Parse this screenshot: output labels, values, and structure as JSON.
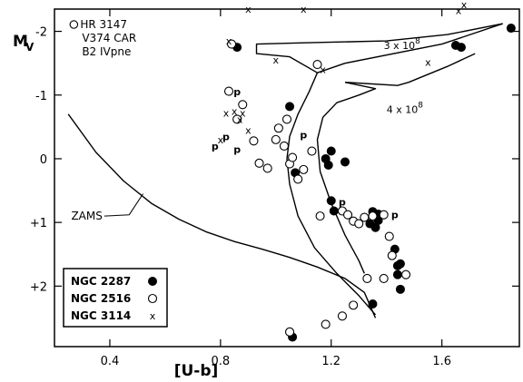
{
  "chart_data": {
    "type": "scatter",
    "xlabel": "[U-b]",
    "ylabel": "M",
    "ylabel_sub": "V",
    "xlim": [
      0.2,
      1.88
    ],
    "ylim": [
      -2.35,
      2.95
    ],
    "x_ticks": [
      0.4,
      0.8,
      1.2,
      1.6
    ],
    "x_tick_labels": [
      "0.4",
      "0.8",
      "1.2",
      "1.6"
    ],
    "y_ticks": [
      -2,
      -1,
      0,
      1,
      2
    ],
    "y_tick_labels": [
      "-2",
      "-1",
      "0",
      "+1",
      "+2"
    ],
    "star_note": {
      "lines": [
        "HR 3147",
        "V374 CAR",
        "B2 IVpne"
      ],
      "x": 0.27,
      "y": -2.05
    },
    "curves": [
      {
        "name": "ZAMS",
        "x": [
          0.25,
          0.35,
          0.45,
          0.55,
          0.65,
          0.75,
          0.85,
          0.95,
          1.05,
          1.15,
          1.25,
          1.32,
          1.36
        ],
        "y": [
          -0.7,
          -0.1,
          0.35,
          0.7,
          0.95,
          1.15,
          1.3,
          1.42,
          1.55,
          1.7,
          1.88,
          2.1,
          2.5
        ]
      },
      {
        "name": "3 x 10^8",
        "x": [
          1.36,
          1.3,
          1.22,
          1.14,
          1.08,
          1.05,
          1.04,
          1.05,
          1.08,
          1.12,
          1.15,
          1.25,
          1.6,
          1.82
        ],
        "y": [
          2.45,
          2.15,
          1.8,
          1.4,
          0.9,
          0.4,
          0.0,
          -0.35,
          -0.7,
          -1.05,
          -1.35,
          -1.5,
          -1.8,
          -2.12
        ]
      },
      {
        "name": "4 x 10^8",
        "x": [
          1.32,
          1.3,
          1.25,
          1.2,
          1.16,
          1.15,
          1.17,
          1.22,
          1.3,
          1.36,
          1.25
        ],
        "y": [
          1.8,
          1.6,
          1.2,
          0.7,
          0.2,
          -0.3,
          -0.65,
          -0.88,
          -1.0,
          -1.1,
          -1.2
        ]
      },
      {
        "name": "hook-upper",
        "x": [
          1.15,
          1.05,
          0.93,
          0.93,
          1.1,
          1.4,
          1.62,
          1.82
        ],
        "y": [
          -1.35,
          -1.6,
          -1.65,
          -1.8,
          -1.82,
          -1.85,
          -1.95,
          -2.12
        ]
      },
      {
        "name": "hook-lower",
        "x": [
          1.25,
          1.44,
          1.48,
          1.62,
          1.72
        ],
        "y": [
          -1.2,
          -1.15,
          -1.2,
          -1.45,
          -1.65
        ]
      }
    ],
    "isochrone_labels": [
      {
        "text": "3 x 10",
        "exp": "8",
        "x": 1.39,
        "y": -1.72
      },
      {
        "text": "4 x 10",
        "exp": "8",
        "x": 1.4,
        "y": -0.72
      }
    ],
    "zams_label": {
      "text": "ZAMS",
      "x": 0.38,
      "y": 0.9
    },
    "series": [
      {
        "name": "NGC 2287",
        "marker": "filled-circle",
        "points": [
          [
            0.86,
            -1.75
          ],
          [
            1.05,
            -0.82
          ],
          [
            1.65,
            -1.78
          ],
          [
            1.67,
            -1.75
          ],
          [
            1.85,
            -2.05
          ],
          [
            1.18,
            0.0
          ],
          [
            1.19,
            0.1
          ],
          [
            1.2,
            -0.12
          ],
          [
            1.25,
            0.05
          ],
          [
            1.07,
            0.22
          ],
          [
            1.2,
            0.66
          ],
          [
            1.21,
            0.82
          ],
          [
            1.35,
            0.83
          ],
          [
            1.37,
            0.87
          ],
          [
            1.34,
            1.02
          ],
          [
            1.36,
            1.08
          ],
          [
            1.37,
            0.97
          ],
          [
            1.43,
            1.42
          ],
          [
            1.44,
            1.68
          ],
          [
            1.45,
            1.65
          ],
          [
            1.44,
            1.82
          ],
          [
            1.45,
            2.05
          ],
          [
            1.35,
            2.28
          ],
          [
            1.06,
            2.8
          ]
        ]
      },
      {
        "name": "NGC 2516",
        "marker": "open-circle",
        "points": [
          [
            0.84,
            -1.8
          ],
          [
            0.83,
            -1.06
          ],
          [
            0.86,
            -0.62
          ],
          [
            0.88,
            -0.85
          ],
          [
            0.92,
            -0.28
          ],
          [
            0.94,
            0.07
          ],
          [
            0.97,
            0.15
          ],
          [
            1.0,
            -0.3
          ],
          [
            1.01,
            -0.48
          ],
          [
            1.03,
            -0.2
          ],
          [
            1.04,
            -0.62
          ],
          [
            1.05,
            0.08
          ],
          [
            1.06,
            -0.02
          ],
          [
            1.08,
            0.32
          ],
          [
            1.1,
            0.17
          ],
          [
            1.13,
            -0.12
          ],
          [
            1.15,
            -1.48
          ],
          [
            1.24,
            0.82
          ],
          [
            1.26,
            0.88
          ],
          [
            1.28,
            0.98
          ],
          [
            1.3,
            1.02
          ],
          [
            1.32,
            0.92
          ],
          [
            1.35,
            0.9
          ],
          [
            1.39,
            0.88
          ],
          [
            1.41,
            1.22
          ],
          [
            1.42,
            1.52
          ],
          [
            1.47,
            1.82
          ],
          [
            1.39,
            1.88
          ],
          [
            1.33,
            1.88
          ],
          [
            1.28,
            2.3
          ],
          [
            1.24,
            2.47
          ],
          [
            1.18,
            2.6
          ],
          [
            1.05,
            2.72
          ],
          [
            1.16,
            0.9
          ]
        ]
      },
      {
        "name": "NGC 3114",
        "marker": "x",
        "points": [
          [
            0.9,
            -2.35
          ],
          [
            1.1,
            -2.35
          ],
          [
            1.66,
            -2.33
          ],
          [
            1.68,
            -2.42
          ],
          [
            0.83,
            -1.85
          ],
          [
            0.87,
            -0.62
          ],
          [
            0.9,
            -0.45
          ],
          [
            1.0,
            -1.55
          ],
          [
            1.05,
            -0.82
          ],
          [
            1.17,
            -1.4
          ],
          [
            1.55,
            -1.52
          ],
          [
            0.82,
            -0.72
          ],
          [
            0.85,
            -0.75
          ],
          [
            0.88,
            -0.72
          ],
          [
            0.8,
            -0.3
          ]
        ]
      },
      {
        "name": "p",
        "marker": "text",
        "points": [
          [
            0.86,
            -1.05
          ],
          [
            0.78,
            -0.2
          ],
          [
            0.82,
            -0.35
          ],
          [
            0.86,
            -0.15
          ],
          [
            1.24,
            0.68
          ],
          [
            1.43,
            0.88
          ],
          [
            1.1,
            -0.38
          ]
        ]
      }
    ],
    "legend": [
      {
        "label": "NGC 2287",
        "marker": "filled-circle"
      },
      {
        "label": "NGC 2516",
        "marker": "open-circle"
      },
      {
        "label": "NGC 3114",
        "marker": "x"
      }
    ],
    "legend_position": "bottom-left",
    "grid": false
  }
}
